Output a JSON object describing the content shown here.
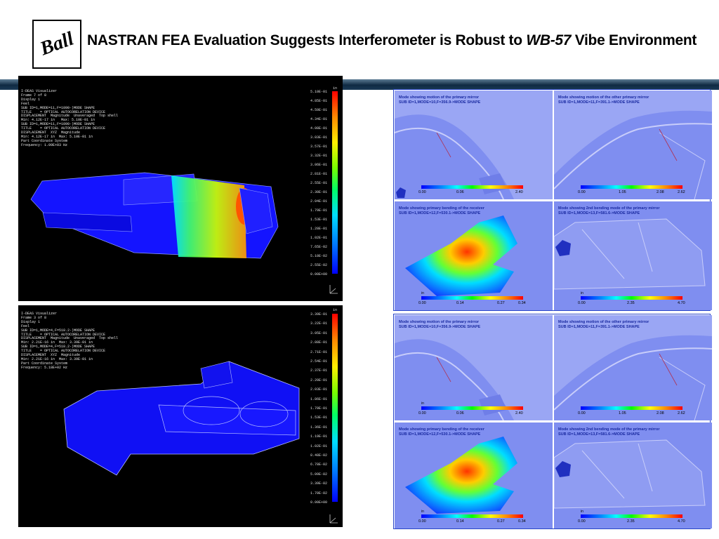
{
  "header": {
    "logo_text": "Ball",
    "title_pre": "NASTRAN FEA Evaluation Suggests Interferometer is Robust to ",
    "title_em": "WB-57",
    "title_post": " Vibe Environment"
  },
  "viz_top": {
    "info": "I-DEAS Visualizer\nFrame 7 of 8\nDisplay 1\nFeel\nSUB ID=1,MODE=11,F=1090-)MODE SHAPE\nTITLE    = OPTICAL AUTOCORELATION DEVICE\nDISPLACEMENT  Magnitude  Unaveraged  Top shell\nMin: 4.12E-17 in   Max: 5.10E-01 in\nSUB ID=1,MODE=11,F=1090-)MODE SHAPE\nTITLE    = OPTICAL AUTOCORELATION DEVICE\nDISPLACEMENT  XYZ  Magnitude\nMin: 4.12E-17 in  Max: 5.10E-01 in\nPart Coordinate System\nFrequency: 1.09E+03 Hz",
    "unit": "in",
    "ticks": [
      "5.10E-01",
      "4.85E-01",
      "4.59E-01",
      "4.34E-01",
      "4.08E-01",
      "3.83E-01",
      "3.57E-01",
      "3.32E-01",
      "3.06E-01",
      "2.81E-01",
      "2.55E-01",
      "2.30E-01",
      "2.04E-01",
      "1.79E-01",
      "1.53E-01",
      "1.28E-01",
      "1.02E-01",
      "7.65E-02",
      "5.10E-02",
      "2.55E-02",
      "0.00E+00"
    ]
  },
  "viz_bot": {
    "info": "I-DEAS Visualizer\nFrame 3 of 8\nDisplay 1\nFeel\nSUB ID=1,MODE=4,F=518.2-)MODE SHAPE\nTITLE    = OPTICAL AUTOCORELATION DEVICE\nDISPLACEMENT  Magnitude  Unaveraged  Top shell\nMin: 2.21E-16 in  Max: 3.39E-01 in\nSUB ID=1,MODE=4,F=518.2-)MODE SHAPE\nTITLE    = OPTICAL AUTOCORELATION DEVICE\nDISPLACEMENT  XYZ  Magnitude\nMin: 2.21E-16 in  Max: 3.39E-01 in\nPart Coordinate System\nFrequency: 5.18E+02 Hz",
    "unit": "in",
    "ticks": [
      "3.39E-01",
      "3.22E-01",
      "3.05E-01",
      "2.88E-01",
      "2.71E-01",
      "2.54E-01",
      "2.37E-01",
      "2.20E-01",
      "2.03E-01",
      "1.86E-01",
      "1.70E-01",
      "1.53E-01",
      "1.36E-01",
      "1.19E-01",
      "1.02E-01",
      "8.48E-02",
      "6.78E-02",
      "5.09E-02",
      "3.39E-02",
      "1.70E-02",
      "0.00E+00"
    ]
  },
  "panel_sets": [
    {
      "panels": [
        {
          "cap1": "Mode showing motion of the primary mirror",
          "cap2": "SUB ID=1,MODE=10,F=356.9->MODE SHAPE",
          "labels": [
            "0.00",
            "0.06",
            "2.40"
          ],
          "unit": ""
        },
        {
          "cap1": "Mode showing motion of the other primary mirror",
          "cap2": "SUB ID=1,MODE=11,F=391.1->MODE SHAPE",
          "labels": [
            "0.00",
            "1.05",
            "2.08",
            "2.62"
          ],
          "unit": ""
        },
        {
          "cap1": "Mode showing primary bending of the receiver",
          "cap2": "SUB ID=1,MODE=12,F=530.1->MODE SHAPE",
          "labels": [
            "0.00",
            "0.14",
            "0.27",
            "0.34"
          ],
          "unit": "in"
        },
        {
          "cap1": "Mode showing 2nd bending mode of the  primary mirror",
          "cap2": "SUB ID=1,MODE=13,F=581.6->MODE SHAPE",
          "labels": [
            "0.00",
            "2.35",
            "4.70"
          ],
          "unit": "in"
        }
      ]
    },
    {
      "panels": [
        {
          "cap1": "Mode showing motion of the primary mirror",
          "cap2": "SUB ID=1,MODE=10,F=356.9->MODE SHAPE",
          "labels": [
            "0.00",
            "0.06",
            "2.40"
          ],
          "unit": "in"
        },
        {
          "cap1": "Mode showing motion of the other primary mirror",
          "cap2": "SUB ID=1,MODE=11,F=391.1->MODE SHAPE",
          "labels": [
            "0.00",
            "1.05",
            "2.08",
            "2.62"
          ],
          "unit": ""
        },
        {
          "cap1": "Mode showing primary bending of the receiver",
          "cap2": "SUB ID=1,MODE=12,F=530.1->MODE SHAPE",
          "labels": [
            "0.00",
            "0.14",
            "0.27",
            "0.34"
          ],
          "unit": "in"
        },
        {
          "cap1": "Mode showing 2nd bending mode of the  primary mirror",
          "cap2": "SUB ID=1,MODE=13,F=581.6->MODE SHAPE",
          "labels": [
            "0.00",
            "2.35",
            "4.70"
          ],
          "unit": "in"
        }
      ]
    }
  ]
}
